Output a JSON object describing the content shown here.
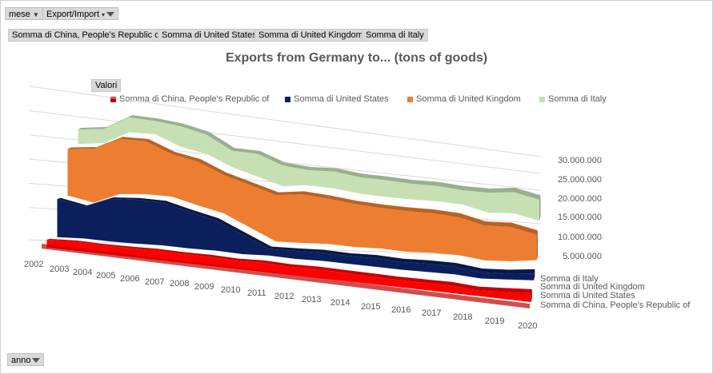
{
  "pivot": {
    "top_fields": [
      {
        "label": "mese",
        "has_dropdown": true,
        "has_filter": false
      },
      {
        "label": "Export/Import",
        "has_dropdown": true,
        "has_filter": true
      }
    ],
    "value_fields": [
      "Somma di China, People's Republic of",
      "Somma di United States",
      "Somma di United Kingdom",
      "Somma di Italy"
    ],
    "values_button": "Valori",
    "axis_field": {
      "label": "anno",
      "has_filter": true
    }
  },
  "chart_data": {
    "type": "area",
    "subtype": "3d-area",
    "title": "Exports from Germany to... (tons of goods)",
    "categories": [
      "2002",
      "2003",
      "2004",
      "2005",
      "2006",
      "2007",
      "2008",
      "2009",
      "2010",
      "2011",
      "2012",
      "2013",
      "2014",
      "2015",
      "2016",
      "2017",
      "2018",
      "2019",
      "2020"
    ],
    "series": [
      {
        "name": "Somma di China, People's Republic of",
        "color": "#ff0000",
        "values": [
          1800000,
          2100000,
          2000000,
          2100000,
          2300000,
          2200000,
          2300000,
          2100000,
          2400000,
          2200000,
          2400000,
          2300000,
          2200000,
          2100000,
          2200000,
          2300000,
          1800000,
          2300000,
          2900000
        ]
      },
      {
        "name": "Somma di United States",
        "color": "#0a1f5c",
        "values": [
          8500000,
          7200000,
          9800000,
          10300000,
          10200000,
          8900000,
          7500000,
          4900000,
          1700000,
          2100000,
          2200000,
          2100000,
          2400000,
          2200000,
          2400000,
          2300000,
          1900000,
          1800000,
          2200000
        ]
      },
      {
        "name": "Somma di United Kingdom",
        "color": "#ed7d31",
        "values": [
          10000000,
          11800000,
          12300000,
          12000000,
          9800000,
          10300000,
          9200000,
          10400000,
          11600000,
          12400000,
          11800000,
          11400000,
          11000000,
          11300000,
          11200000,
          11000000,
          10300000,
          10400000,
          7900000
        ]
      },
      {
        "name": "Somma di Italy",
        "color": "#c6e0b4",
        "values": [
          3000000,
          3000000,
          3200000,
          2900000,
          4600000,
          4400000,
          3800000,
          5400000,
          5000000,
          3600000,
          4300000,
          4200000,
          4400000,
          4200000,
          4200000,
          4000000,
          5700000,
          6200000,
          6300000
        ]
      }
    ],
    "z_labels": [
      "Somma di Italy",
      "Somma di United Kingdom",
      "Somma di United States",
      "Somma di China, People's Republic of"
    ],
    "yticks": [
      5000000,
      10000000,
      15000000,
      20000000,
      25000000,
      30000000
    ],
    "ytick_labels": [
      "5.000.000",
      "10.000.000",
      "15.000.000",
      "20.000.000",
      "25.000.000",
      "30.000.000"
    ],
    "ylim": [
      0,
      30000000
    ],
    "stacked": true,
    "grid": true,
    "legend_position": "top"
  }
}
